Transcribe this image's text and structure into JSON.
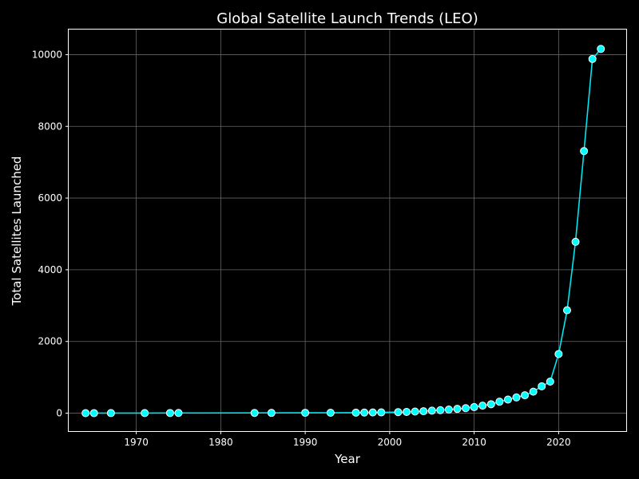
{
  "chart_data": {
    "type": "line",
    "title": "Global Satellite Launch Trends (LEO)",
    "xlabel": "Year",
    "ylabel": "Total Satellites Launched",
    "xlim": [
      1962,
      2028
    ],
    "ylim": [
      -500,
      10700
    ],
    "xticks": [
      1970,
      1980,
      1990,
      2000,
      2010,
      2020
    ],
    "yticks": [
      0,
      2000,
      4000,
      6000,
      8000,
      10000
    ],
    "grid": true,
    "colors": {
      "background": "#000000",
      "line": "#00e5ee",
      "marker_fill": "#00ffff",
      "marker_edge": "#ffffff",
      "grid": "#666666",
      "text": "#ffffff"
    },
    "series": [
      {
        "x": [
          1964,
          1965,
          1967,
          1971,
          1974,
          1975,
          1984,
          1986,
          1990,
          1993,
          1996,
          1997,
          1998,
          1999,
          2001,
          2002,
          2003,
          2004,
          2005,
          2006,
          2007,
          2008,
          2009,
          2010,
          2011,
          2012,
          2013,
          2014,
          2015,
          2016,
          2017,
          2018,
          2019,
          2020,
          2021,
          2022,
          2023,
          2024,
          2025
        ],
        "y": [
          1,
          2,
          3,
          4,
          5,
          6,
          7,
          8,
          10,
          12,
          15,
          18,
          20,
          22,
          30,
          35,
          45,
          55,
          70,
          85,
          100,
          120,
          140,
          170,
          210,
          250,
          320,
          380,
          440,
          500,
          600,
          750,
          880,
          1650,
          2870,
          4780,
          7310,
          9880,
          10160
        ]
      }
    ]
  }
}
